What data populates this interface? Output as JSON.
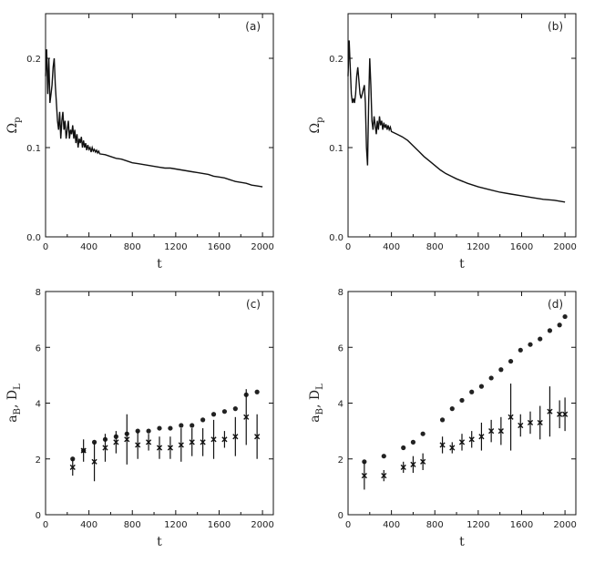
{
  "chart_data": [
    {
      "type": "line",
      "panel_label": "(a)",
      "xlabel": "t",
      "ylabel": "Ω",
      "ylabel_sub": "p",
      "xlim": [
        0,
        2100
      ],
      "ylim": [
        0,
        0.25
      ],
      "x_ticks": [
        0,
        400,
        800,
        1200,
        1600,
        2000
      ],
      "y_ticks": [
        0.0,
        0.1,
        0.2
      ],
      "x_tick_labels": [
        "0",
        "400",
        "800",
        "1200",
        "1600",
        "2000"
      ],
      "y_tick_labels": [
        "0.0",
        "0.1",
        "0.2"
      ],
      "series": [
        {
          "name": "Omega_p",
          "x": [
            0,
            10,
            20,
            30,
            40,
            50,
            60,
            70,
            80,
            90,
            100,
            110,
            120,
            130,
            140,
            150,
            160,
            170,
            180,
            190,
            200,
            210,
            220,
            230,
            240,
            250,
            260,
            270,
            280,
            290,
            300,
            310,
            320,
            330,
            340,
            350,
            360,
            370,
            380,
            390,
            400,
            410,
            420,
            430,
            440,
            450,
            460,
            470,
            480,
            490,
            500,
            550,
            600,
            650,
            700,
            750,
            800,
            850,
            900,
            950,
            1000,
            1050,
            1100,
            1150,
            1200,
            1250,
            1300,
            1350,
            1400,
            1450,
            1500,
            1550,
            1600,
            1650,
            1700,
            1750,
            1800,
            1850,
            1900,
            1950,
            2000
          ],
          "y": [
            0.18,
            0.21,
            0.16,
            0.2,
            0.15,
            0.16,
            0.17,
            0.19,
            0.2,
            0.17,
            0.15,
            0.13,
            0.12,
            0.14,
            0.11,
            0.13,
            0.14,
            0.12,
            0.13,
            0.11,
            0.12,
            0.13,
            0.11,
            0.12,
            0.115,
            0.125,
            0.11,
            0.12,
            0.105,
            0.115,
            0.1,
            0.11,
            0.105,
            0.112,
            0.1,
            0.108,
            0.1,
            0.105,
            0.097,
            0.103,
            0.098,
            0.1,
            0.095,
            0.1,
            0.096,
            0.098,
            0.095,
            0.097,
            0.094,
            0.096,
            0.093,
            0.092,
            0.09,
            0.088,
            0.087,
            0.085,
            0.083,
            0.082,
            0.081,
            0.08,
            0.079,
            0.078,
            0.077,
            0.077,
            0.076,
            0.075,
            0.074,
            0.073,
            0.072,
            0.071,
            0.07,
            0.068,
            0.067,
            0.066,
            0.064,
            0.062,
            0.061,
            0.06,
            0.058,
            0.057,
            0.056
          ]
        }
      ]
    },
    {
      "type": "line",
      "panel_label": "(b)",
      "xlabel": "t",
      "ylabel": "Ω",
      "ylabel_sub": "p",
      "xlim": [
        0,
        2100
      ],
      "ylim": [
        0,
        0.25
      ],
      "x_ticks": [
        0,
        400,
        800,
        1200,
        1600,
        2000
      ],
      "y_ticks": [
        0.0,
        0.1,
        0.2
      ],
      "x_tick_labels": [
        "0",
        "400",
        "800",
        "1200",
        "1600",
        "2000"
      ],
      "y_tick_labels": [
        "0.0",
        "0.1",
        "0.2"
      ],
      "series": [
        {
          "name": "Omega_p",
          "x": [
            0,
            10,
            20,
            30,
            40,
            50,
            60,
            70,
            80,
            90,
            100,
            110,
            120,
            130,
            140,
            150,
            160,
            170,
            180,
            190,
            200,
            210,
            220,
            230,
            240,
            250,
            260,
            270,
            280,
            290,
            300,
            310,
            320,
            330,
            340,
            350,
            360,
            370,
            380,
            390,
            400,
            450,
            500,
            550,
            600,
            650,
            700,
            750,
            800,
            850,
            900,
            950,
            1000,
            1100,
            1200,
            1300,
            1400,
            1500,
            1600,
            1700,
            1800,
            1900,
            2000
          ],
          "y": [
            0.18,
            0.22,
            0.19,
            0.16,
            0.15,
            0.155,
            0.15,
            0.16,
            0.18,
            0.19,
            0.175,
            0.16,
            0.155,
            0.16,
            0.165,
            0.17,
            0.15,
            0.1,
            0.08,
            0.15,
            0.2,
            0.17,
            0.13,
            0.12,
            0.135,
            0.125,
            0.115,
            0.13,
            0.12,
            0.135,
            0.125,
            0.13,
            0.12,
            0.128,
            0.122,
            0.126,
            0.12,
            0.125,
            0.12,
            0.123,
            0.118,
            0.115,
            0.112,
            0.108,
            0.102,
            0.096,
            0.09,
            0.085,
            0.08,
            0.075,
            0.071,
            0.068,
            0.065,
            0.06,
            0.056,
            0.053,
            0.05,
            0.048,
            0.046,
            0.044,
            0.042,
            0.041,
            0.039
          ]
        }
      ]
    },
    {
      "type": "scatter",
      "panel_label": "(c)",
      "xlabel": "t",
      "ylabel": "a",
      "ylabel_sub": "B",
      "ylabel_rest": ", D",
      "ylabel_sub2": "L",
      "xlim": [
        0,
        2100
      ],
      "ylim": [
        0,
        8
      ],
      "x_ticks": [
        0,
        400,
        800,
        1200,
        1600,
        2000
      ],
      "y_ticks": [
        0,
        2,
        4,
        6,
        8
      ],
      "x_tick_labels": [
        "0",
        "400",
        "800",
        "1200",
        "1600",
        "2000"
      ],
      "y_tick_labels": [
        "0",
        "2",
        "4",
        "6",
        "8"
      ],
      "series": [
        {
          "name": "a_B",
          "marker": "circle",
          "x": [
            250,
            350,
            450,
            550,
            650,
            750,
            850,
            950,
            1050,
            1150,
            1250,
            1350,
            1450,
            1550,
            1650,
            1750,
            1850,
            1950
          ],
          "y": [
            2.0,
            2.3,
            2.6,
            2.7,
            2.8,
            2.9,
            3.0,
            3.0,
            3.1,
            3.1,
            3.2,
            3.2,
            3.4,
            3.6,
            3.7,
            3.8,
            4.3,
            4.4
          ]
        },
        {
          "name": "D_L",
          "marker": "cross",
          "x": [
            250,
            350,
            450,
            550,
            650,
            750,
            850,
            950,
            1050,
            1150,
            1250,
            1350,
            1450,
            1550,
            1650,
            1750,
            1850,
            1950
          ],
          "y": [
            1.7,
            2.3,
            1.9,
            2.4,
            2.6,
            2.7,
            2.5,
            2.6,
            2.4,
            2.4,
            2.5,
            2.6,
            2.6,
            2.7,
            2.7,
            2.8,
            3.5,
            2.8
          ],
          "err": [
            0.3,
            0.4,
            0.7,
            0.5,
            0.4,
            0.9,
            0.5,
            0.3,
            0.4,
            0.4,
            0.6,
            0.5,
            0.5,
            0.7,
            0.3,
            0.7,
            1.0,
            0.8
          ]
        }
      ]
    },
    {
      "type": "scatter",
      "panel_label": "(d)",
      "xlabel": "t",
      "ylabel": "a",
      "ylabel_sub": "B",
      "ylabel_rest": ", D",
      "ylabel_sub2": "L",
      "xlim": [
        0,
        2100
      ],
      "ylim": [
        0,
        8
      ],
      "x_ticks": [
        0,
        400,
        800,
        1200,
        1600,
        2000
      ],
      "y_ticks": [
        0,
        2,
        4,
        6,
        8
      ],
      "x_tick_labels": [
        "0",
        "400",
        "800",
        "1200",
        "1600",
        "2000"
      ],
      "y_tick_labels": [
        "0",
        "2",
        "4",
        "6",
        "8"
      ],
      "series": [
        {
          "name": "a_B",
          "marker": "circle",
          "x": [
            150,
            330,
            510,
            600,
            690,
            870,
            960,
            1050,
            1140,
            1230,
            1320,
            1410,
            1500,
            1590,
            1680,
            1770,
            1860,
            1950,
            2000
          ],
          "y": [
            1.9,
            2.1,
            2.4,
            2.6,
            2.9,
            3.4,
            3.8,
            4.1,
            4.4,
            4.6,
            4.9,
            5.2,
            5.5,
            5.9,
            6.1,
            6.3,
            6.6,
            6.8,
            7.1
          ]
        },
        {
          "name": "D_L",
          "marker": "cross",
          "x": [
            150,
            330,
            510,
            600,
            690,
            870,
            960,
            1050,
            1140,
            1230,
            1320,
            1410,
            1500,
            1590,
            1680,
            1770,
            1860,
            1950,
            2000
          ],
          "y": [
            1.4,
            1.4,
            1.7,
            1.8,
            1.9,
            2.5,
            2.4,
            2.6,
            2.7,
            2.8,
            3.0,
            3.0,
            3.5,
            3.2,
            3.3,
            3.3,
            3.7,
            3.6,
            3.6
          ],
          "err": [
            0.5,
            0.2,
            0.2,
            0.3,
            0.3,
            0.3,
            0.2,
            0.3,
            0.3,
            0.5,
            0.4,
            0.5,
            1.2,
            0.4,
            0.4,
            0.6,
            0.9,
            0.5,
            0.6
          ]
        }
      ]
    }
  ]
}
